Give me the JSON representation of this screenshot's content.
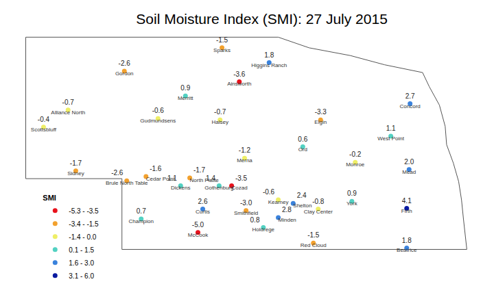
{
  "chart_data": {
    "type": "map",
    "title": "Soil Moisture Index (SMI): 27 July 2015",
    "legend_title": "SMI",
    "legend": "bottom left",
    "tick_labels": false,
    "data_labels": true,
    "series": [
      {
        "name": "-5.3 - -3.5",
        "color": "#e8121c",
        "stations": [
          "Ainsworth",
          "Cozad",
          "McCook"
        ],
        "lon": [
          -99.61,
          -99.77,
          -100.47
        ],
        "lat": [
          42.37,
          40.9,
          40.24
        ],
        "values": [
          -3.6,
          -3.5,
          -5.0
        ],
        "value_labels": [
          "-3.6",
          "-3.5",
          "-5.0"
        ]
      },
      {
        "name": "-3.4 - -1.5",
        "color": "#f2a12e",
        "stations": [
          "Sparks",
          "Gordon",
          "Elgin",
          "Sidney",
          "Cedar Point",
          "Brule North Table",
          "North Platte",
          "Smithfield",
          "Red Cloud"
        ],
        "lon": [
          -99.97,
          -102.0,
          -97.92,
          -103.01,
          -101.55,
          -101.95,
          -100.64,
          -99.47,
          -98.07
        ],
        "lat": [
          42.85,
          42.52,
          41.83,
          41.11,
          41.03,
          40.97,
          41.01,
          40.55,
          40.09
        ],
        "values": [
          -1.5,
          -2.6,
          -3.3,
          -1.7,
          -1.6,
          -2.6,
          -1.7,
          -3.0,
          -1.5
        ],
        "value_labels": [
          "-1.5",
          "-2.6",
          "-3.3",
          "-1.7",
          "-1.6",
          "-2.6",
          "-1.7",
          "-3.0",
          "-1.5"
        ]
      },
      {
        "name": "-1.4 - 0.0",
        "color": "#eeee66",
        "stations": [
          "Alliance North",
          "Gudmundsens",
          "Scottsbluff",
          "Halsey",
          "Merna",
          "Monroe",
          "Kearney",
          "Clay Center"
        ],
        "lon": [
          -103.17,
          -101.3,
          -103.68,
          -100.01,
          -99.5,
          -97.2,
          -98.8,
          -97.97
        ],
        "lat": [
          41.97,
          41.85,
          41.73,
          41.83,
          41.29,
          41.23,
          40.7,
          40.57
        ],
        "values": [
          -0.7,
          -0.6,
          -0.4,
          -0.7,
          -1.2,
          -0.2,
          -0.6,
          -0.8
        ],
        "value_labels": [
          "-0.7",
          "-0.6",
          "-0.4",
          "-0.7",
          "-1.2",
          "-0.2",
          "-0.6",
          "-0.8"
        ]
      },
      {
        "name": "0.1 - 1.5",
        "color": "#52d1c2",
        "stations": [
          "Merritt",
          "Ord",
          "West Point",
          "Dickens",
          "Gothenburg",
          "York",
          "Champion",
          "Holdrege"
        ],
        "lon": [
          -100.73,
          -98.29,
          -96.46,
          -100.83,
          -100.03,
          -97.27,
          -101.65,
          -99.11
        ],
        "lat": [
          42.17,
          41.45,
          41.6,
          40.9,
          40.9,
          40.68,
          40.43,
          40.31
        ],
        "values": [
          0.9,
          0.6,
          1.1,
          1.1,
          1.4,
          0.9,
          0.7,
          0.8
        ],
        "value_labels": [
          "0.9",
          "0.6",
          "1.1",
          "1.1",
          "1.4",
          "0.9",
          "0.7",
          "0.8"
        ]
      },
      {
        "name": "1.6 - 3.0",
        "color": "#3a82dc",
        "stations": [
          "Higgins Ranch",
          "Concord",
          "Mead",
          "Shelton",
          "Curtis",
          "Minden",
          "Beatrice"
        ],
        "lon": [
          -98.99,
          -96.06,
          -96.08,
          -98.49,
          -100.37,
          -98.8,
          -96.13
        ],
        "lat": [
          42.64,
          42.06,
          41.13,
          40.65,
          40.57,
          40.45,
          40.02
        ],
        "values": [
          1.8,
          2.7,
          2.0,
          2.4,
          2.6,
          2.8,
          1.8
        ],
        "value_labels": [
          "1.8",
          "2.7",
          "2.0",
          "2.4",
          "2.6",
          "2.8",
          "1.8"
        ]
      },
      {
        "name": "3.1 - 6.0",
        "color": "#0a1aa0",
        "stations": [
          "Firth"
        ],
        "lon": [
          -96.13
        ],
        "lat": [
          40.58
        ],
        "values": [
          4.1
        ],
        "value_labels": [
          "4.1"
        ]
      }
    ]
  }
}
